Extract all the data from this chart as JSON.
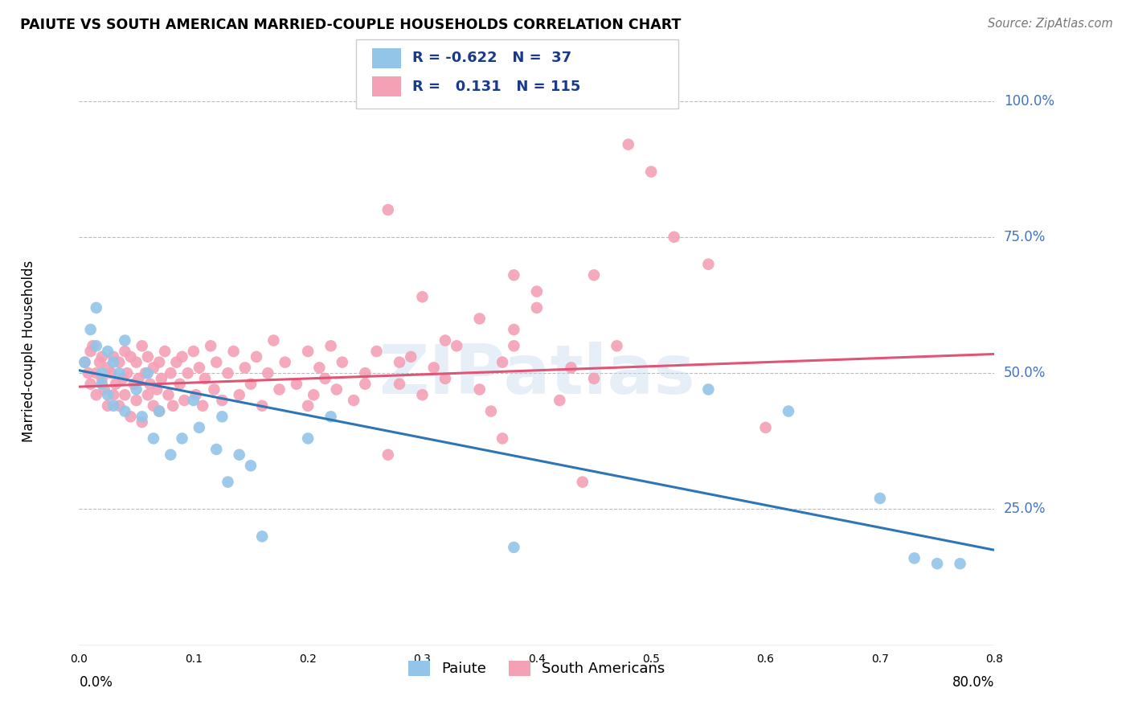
{
  "title": "PAIUTE VS SOUTH AMERICAN MARRIED-COUPLE HOUSEHOLDS CORRELATION CHART",
  "source": "Source: ZipAtlas.com",
  "ylabel": "Married-couple Households",
  "ytick_labels": [
    "100.0%",
    "75.0%",
    "50.0%",
    "25.0%"
  ],
  "ytick_values": [
    1.0,
    0.75,
    0.5,
    0.25
  ],
  "xmin": 0.0,
  "xmax": 0.8,
  "ymin": 0.0,
  "ymax": 1.08,
  "paiute_color": "#92C5E8",
  "south_american_color": "#F4A0B5",
  "paiute_line_color": "#2E75B6",
  "south_american_line_color": "#E05575",
  "watermark": "ZIPatlas",
  "background_color": "#FFFFFF",
  "grid_color": "#BBBBBB",
  "paiute_line_x0": 0.0,
  "paiute_line_y0": 0.505,
  "paiute_line_x1": 0.8,
  "paiute_line_y1": 0.175,
  "sa_line_x0": 0.0,
  "sa_line_y0": 0.475,
  "sa_line_x1": 0.8,
  "sa_line_y1": 0.535,
  "paiute_x": [
    0.005,
    0.01,
    0.015,
    0.015,
    0.02,
    0.02,
    0.025,
    0.025,
    0.03,
    0.03,
    0.035,
    0.04,
    0.04,
    0.05,
    0.055,
    0.06,
    0.065,
    0.07,
    0.08,
    0.09,
    0.1,
    0.105,
    0.12,
    0.125,
    0.13,
    0.14,
    0.15,
    0.16,
    0.2,
    0.22,
    0.38,
    0.55,
    0.62,
    0.7,
    0.73,
    0.75,
    0.77
  ],
  "paiute_y": [
    0.52,
    0.58,
    0.62,
    0.55,
    0.5,
    0.48,
    0.54,
    0.46,
    0.52,
    0.44,
    0.5,
    0.43,
    0.56,
    0.47,
    0.42,
    0.5,
    0.38,
    0.43,
    0.35,
    0.38,
    0.45,
    0.4,
    0.36,
    0.42,
    0.3,
    0.35,
    0.33,
    0.2,
    0.38,
    0.42,
    0.18,
    0.47,
    0.43,
    0.27,
    0.16,
    0.15,
    0.15
  ],
  "sa_x": [
    0.005,
    0.008,
    0.01,
    0.01,
    0.012,
    0.015,
    0.015,
    0.018,
    0.02,
    0.02,
    0.022,
    0.025,
    0.025,
    0.028,
    0.03,
    0.03,
    0.032,
    0.035,
    0.035,
    0.038,
    0.04,
    0.04,
    0.042,
    0.045,
    0.045,
    0.048,
    0.05,
    0.05,
    0.052,
    0.055,
    0.055,
    0.058,
    0.06,
    0.06,
    0.062,
    0.065,
    0.065,
    0.068,
    0.07,
    0.07,
    0.072,
    0.075,
    0.078,
    0.08,
    0.082,
    0.085,
    0.088,
    0.09,
    0.092,
    0.095,
    0.1,
    0.102,
    0.105,
    0.108,
    0.11,
    0.115,
    0.118,
    0.12,
    0.125,
    0.13,
    0.135,
    0.14,
    0.145,
    0.15,
    0.155,
    0.16,
    0.165,
    0.17,
    0.175,
    0.18,
    0.19,
    0.2,
    0.205,
    0.21,
    0.215,
    0.22,
    0.225,
    0.23,
    0.24,
    0.25,
    0.26,
    0.27,
    0.28,
    0.29,
    0.3,
    0.31,
    0.32,
    0.33,
    0.35,
    0.37,
    0.38,
    0.4,
    0.42,
    0.43,
    0.45,
    0.47,
    0.48,
    0.5,
    0.52,
    0.55,
    0.38,
    0.4,
    0.27,
    0.6,
    0.44,
    0.45,
    0.37,
    0.38,
    0.3,
    0.35,
    0.2,
    0.25,
    0.28,
    0.32,
    0.36
  ],
  "sa_y": [
    0.52,
    0.5,
    0.54,
    0.48,
    0.55,
    0.5,
    0.46,
    0.52,
    0.49,
    0.53,
    0.47,
    0.51,
    0.44,
    0.5,
    0.53,
    0.46,
    0.48,
    0.52,
    0.44,
    0.49,
    0.54,
    0.46,
    0.5,
    0.53,
    0.42,
    0.48,
    0.52,
    0.45,
    0.49,
    0.55,
    0.41,
    0.5,
    0.46,
    0.53,
    0.48,
    0.44,
    0.51,
    0.47,
    0.52,
    0.43,
    0.49,
    0.54,
    0.46,
    0.5,
    0.44,
    0.52,
    0.48,
    0.53,
    0.45,
    0.5,
    0.54,
    0.46,
    0.51,
    0.44,
    0.49,
    0.55,
    0.47,
    0.52,
    0.45,
    0.5,
    0.54,
    0.46,
    0.51,
    0.48,
    0.53,
    0.44,
    0.5,
    0.56,
    0.47,
    0.52,
    0.48,
    0.54,
    0.46,
    0.51,
    0.49,
    0.55,
    0.47,
    0.52,
    0.45,
    0.5,
    0.54,
    0.8,
    0.48,
    0.53,
    0.46,
    0.51,
    0.49,
    0.55,
    0.47,
    0.52,
    0.68,
    0.65,
    0.45,
    0.51,
    0.49,
    0.55,
    0.92,
    0.87,
    0.75,
    0.7,
    0.58,
    0.62,
    0.35,
    0.4,
    0.3,
    0.68,
    0.38,
    0.55,
    0.64,
    0.6,
    0.44,
    0.48,
    0.52,
    0.56,
    0.43
  ]
}
